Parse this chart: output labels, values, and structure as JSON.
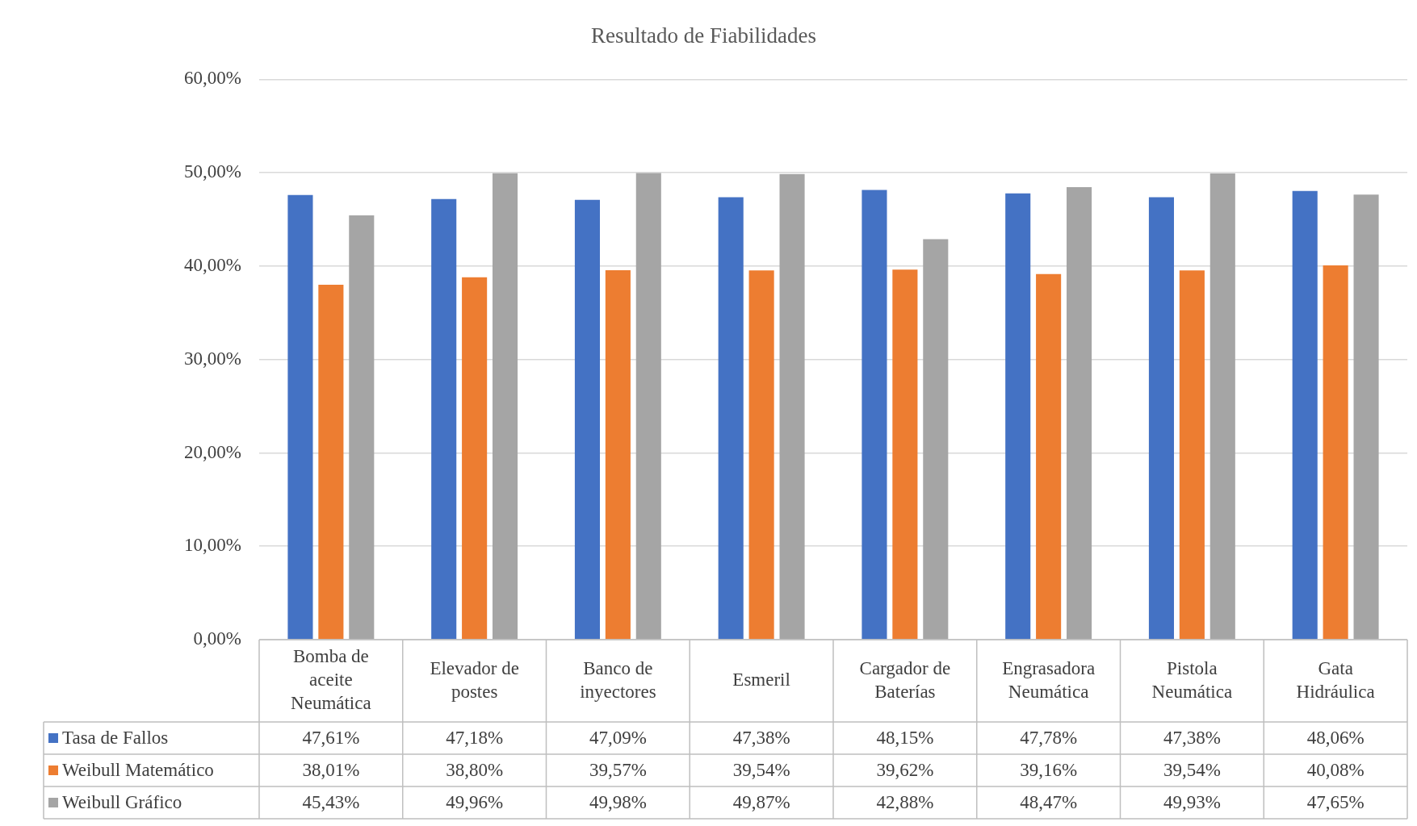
{
  "chart_data": {
    "type": "bar",
    "title": "Resultado de Fiabilidades",
    "categories": [
      "Bomba de aceite Neumática",
      "Elevador de postes",
      "Banco de inyectores",
      "Esmeril",
      "Cargador de Baterías",
      "Engrasadora Neumática",
      "Pistola Neumática",
      "Gata Hidráulica"
    ],
    "series": [
      {
        "name": "Tasa de Fallos",
        "color": "#4472c4",
        "values": [
          47.61,
          47.18,
          47.09,
          47.38,
          48.15,
          47.78,
          47.38,
          48.06
        ],
        "value_labels": [
          "47,61%",
          "47,18%",
          "47,09%",
          "47,38%",
          "48,15%",
          "47,78%",
          "47,38%",
          "48,06%"
        ]
      },
      {
        "name": "Weibull Matemático",
        "color": "#ed7d31",
        "values": [
          38.01,
          38.8,
          39.57,
          39.54,
          39.62,
          39.16,
          39.54,
          40.08
        ],
        "value_labels": [
          "38,01%",
          "38,80%",
          "39,57%",
          "39,54%",
          "39,62%",
          "39,16%",
          "39,54%",
          "40,08%"
        ]
      },
      {
        "name": "Weibull Gráfico",
        "color": "#a5a5a5",
        "values": [
          45.43,
          49.96,
          49.98,
          49.87,
          42.88,
          48.47,
          49.93,
          47.65
        ],
        "value_labels": [
          "45,43%",
          "49,96%",
          "49,98%",
          "49,87%",
          "42,88%",
          "48,47%",
          "49,93%",
          "47,65%"
        ]
      }
    ],
    "ylim": [
      0,
      60
    ],
    "yticks": [
      {
        "value": 0,
        "label": "0,00%"
      },
      {
        "value": 10,
        "label": "10,00%"
      },
      {
        "value": 20,
        "label": "20,00%"
      },
      {
        "value": 30,
        "label": "30,00%"
      },
      {
        "value": 40,
        "label": "40,00%"
      },
      {
        "value": 50,
        "label": "50,00%"
      },
      {
        "value": 60,
        "label": "60,00%"
      }
    ],
    "grid": "y",
    "legend": "bottom"
  }
}
